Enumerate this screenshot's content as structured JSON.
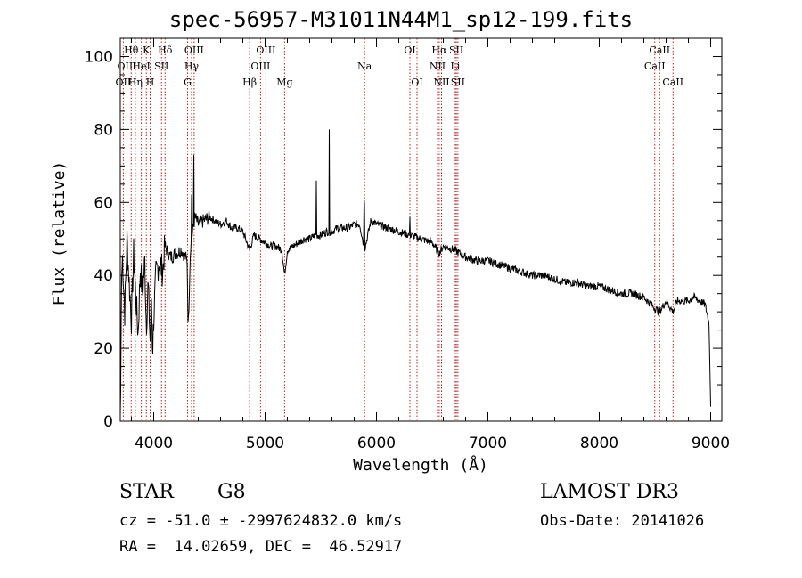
{
  "chart_data": {
    "type": "line",
    "title": "spec-56957-M31011N44M1_sp12-199.fits",
    "xlabel": "Wavelength (Å)",
    "ylabel": "Flux (relative)",
    "xlim": [
      3700,
      9100
    ],
    "ylim": [
      0,
      105
    ],
    "x_ticks": [
      4000,
      5000,
      6000,
      7000,
      8000,
      9000
    ],
    "y_ticks": [
      0,
      20,
      40,
      60,
      80,
      100
    ],
    "anchors": [
      [
        3700,
        2
      ],
      [
        3705,
        10
      ],
      [
        3710,
        38
      ],
      [
        3720,
        45
      ],
      [
        3740,
        30
      ],
      [
        3760,
        50
      ],
      [
        3780,
        38
      ],
      [
        3800,
        28
      ],
      [
        3820,
        46
      ],
      [
        3840,
        34
      ],
      [
        3860,
        24
      ],
      [
        3880,
        42
      ],
      [
        3900,
        35
      ],
      [
        3920,
        44
      ],
      [
        3934,
        26
      ],
      [
        3950,
        38
      ],
      [
        3968,
        22
      ],
      [
        3980,
        34
      ],
      [
        3990,
        19
      ],
      [
        4000,
        28
      ],
      [
        4020,
        40
      ],
      [
        4050,
        44
      ],
      [
        4080,
        41
      ],
      [
        4100,
        48
      ],
      [
        4150,
        45
      ],
      [
        4200,
        46
      ],
      [
        4250,
        47
      ],
      [
        4300,
        44
      ],
      [
        4310,
        25
      ],
      [
        4330,
        48
      ],
      [
        4350,
        52
      ],
      [
        4370,
        56
      ],
      [
        4400,
        54
      ],
      [
        4450,
        55
      ],
      [
        4500,
        56
      ],
      [
        4550,
        55
      ],
      [
        4600,
        54
      ],
      [
        4650,
        55
      ],
      [
        4700,
        53
      ],
      [
        4750,
        53
      ],
      [
        4800,
        52
      ],
      [
        4861,
        47
      ],
      [
        4900,
        51
      ],
      [
        4950,
        50
      ],
      [
        5000,
        49
      ],
      [
        5050,
        48
      ],
      [
        5100,
        48
      ],
      [
        5150,
        47
      ],
      [
        5175,
        40
      ],
      [
        5200,
        47
      ],
      [
        5250,
        48
      ],
      [
        5300,
        49
      ],
      [
        5350,
        50
      ],
      [
        5400,
        50
      ],
      [
        5450,
        51
      ],
      [
        5500,
        51
      ],
      [
        5550,
        52
      ],
      [
        5600,
        52
      ],
      [
        5650,
        53
      ],
      [
        5700,
        53
      ],
      [
        5750,
        53
      ],
      [
        5800,
        54
      ],
      [
        5850,
        54
      ],
      [
        5893,
        47
      ],
      [
        5950,
        55
      ],
      [
        6000,
        54
      ],
      [
        6100,
        53
      ],
      [
        6200,
        52
      ],
      [
        6300,
        51
      ],
      [
        6400,
        50
      ],
      [
        6500,
        49
      ],
      [
        6563,
        46
      ],
      [
        6600,
        48
      ],
      [
        6700,
        47
      ],
      [
        6800,
        45
      ],
      [
        6900,
        44
      ],
      [
        7000,
        44
      ],
      [
        7100,
        43
      ],
      [
        7200,
        42
      ],
      [
        7300,
        41
      ],
      [
        7400,
        40
      ],
      [
        7500,
        40
      ],
      [
        7600,
        39
      ],
      [
        7700,
        38
      ],
      [
        7800,
        38
      ],
      [
        7900,
        37
      ],
      [
        8000,
        37
      ],
      [
        8100,
        36
      ],
      [
        8200,
        35
      ],
      [
        8300,
        35
      ],
      [
        8400,
        34
      ],
      [
        8498,
        31
      ],
      [
        8542,
        30
      ],
      [
        8600,
        33
      ],
      [
        8662,
        30
      ],
      [
        8700,
        33
      ],
      [
        8800,
        33
      ],
      [
        8850,
        34
      ],
      [
        8900,
        33
      ],
      [
        8950,
        32
      ],
      [
        8985,
        27
      ],
      [
        9000,
        4
      ]
    ],
    "spikes": [
      [
        4361,
        73
      ],
      [
        5460,
        66
      ],
      [
        5577,
        80
      ],
      [
        5890,
        60
      ],
      [
        6300,
        56
      ],
      [
        4340,
        62
      ]
    ],
    "lines": [
      {
        "x": 3727,
        "label": "OII",
        "row": 2
      },
      {
        "x": 3760,
        "label": "OIII",
        "row": 1
      },
      {
        "x": 3798,
        "label": "Hθ",
        "row": 0
      },
      {
        "x": 3835,
        "label": "Hη",
        "row": 2
      },
      {
        "x": 3889,
        "label": "HeI",
        "row": 1
      },
      {
        "x": 3934,
        "label": "K",
        "row": 0
      },
      {
        "x": 3968,
        "label": "H",
        "row": 2
      },
      {
        "x": 4070,
        "label": "SII",
        "row": 1
      },
      {
        "x": 4102,
        "label": "Hδ",
        "row": 0
      },
      {
        "x": 4304,
        "label": "G",
        "row": 2
      },
      {
        "x": 4340,
        "label": "Hγ",
        "row": 1
      },
      {
        "x": 4363,
        "label": "OIII",
        "row": 0
      },
      {
        "x": 4861,
        "label": "Hβ",
        "row": 2
      },
      {
        "x": 4959,
        "label": "OIII",
        "row": 1
      },
      {
        "x": 5007,
        "label": "OIII",
        "row": 0
      },
      {
        "x": 5175,
        "label": "Mg",
        "row": 2
      },
      {
        "x": 5893,
        "label": "Na",
        "row": 1
      },
      {
        "x": 6300,
        "label": "OI",
        "row": 0
      },
      {
        "x": 6364,
        "label": "OI",
        "row": 2
      },
      {
        "x": 6548,
        "label": "NII",
        "row": 1
      },
      {
        "x": 6563,
        "label": "Hα",
        "row": 0
      },
      {
        "x": 6584,
        "label": "NII",
        "row": 2
      },
      {
        "x": 6707,
        "label": "Li",
        "row": 1
      },
      {
        "x": 6717,
        "label": "SII",
        "row": 0
      },
      {
        "x": 6731,
        "label": "SII",
        "row": 2
      },
      {
        "x": 8498,
        "label": "CaII",
        "row": 1
      },
      {
        "x": 8542,
        "label": "CaII",
        "row": 0
      },
      {
        "x": 8662,
        "label": "CaII",
        "row": 2
      }
    ]
  },
  "info": {
    "class": "STAR",
    "subclass": "G8",
    "survey": "LAMOST DR3",
    "cz": "cz = -51.0 ± -2997624832.0 km/s",
    "obs_date": "Obs-Date: 20141026",
    "radec": "RA =  14.02659, DEC =  46.52917"
  }
}
